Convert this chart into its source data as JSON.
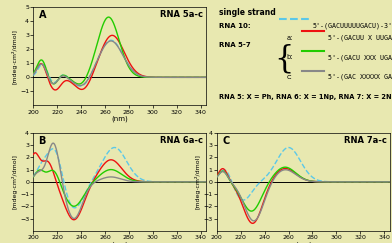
{
  "bg_color": "#e8e8b0",
  "panel_bg": "#e8e8b0",
  "xlim": [
    200,
    345
  ],
  "x_ticks": [
    200,
    220,
    240,
    260,
    280,
    300,
    320,
    340
  ],
  "panels": [
    {
      "label": "A",
      "title": "RNA 5a-c",
      "ylim": [
        -2,
        5
      ],
      "y_ticks": [
        -1,
        0,
        1,
        2,
        3,
        4,
        5
      ],
      "ylabel": "[mdeg·cm²/dmol]"
    },
    {
      "label": "B",
      "title": "RNA 6a-c",
      "ylim": [
        -4,
        4
      ],
      "y_ticks": [
        -3,
        -2,
        -1,
        0,
        1,
        2,
        3,
        4
      ],
      "ylabel": "[mdeg·cm²/dmol]"
    },
    {
      "label": "C",
      "title": "RNA 7a-c",
      "ylim": [
        -4,
        4
      ],
      "y_ticks": [
        -3,
        -2,
        -1,
        0,
        1,
        2,
        3,
        4
      ],
      "ylabel": "[mdeg·cm²/dmol]"
    }
  ],
  "colors": {
    "cyan": "#5bc8e8",
    "red": "#ee1111",
    "green": "#22cc00",
    "gray": "#888888"
  }
}
